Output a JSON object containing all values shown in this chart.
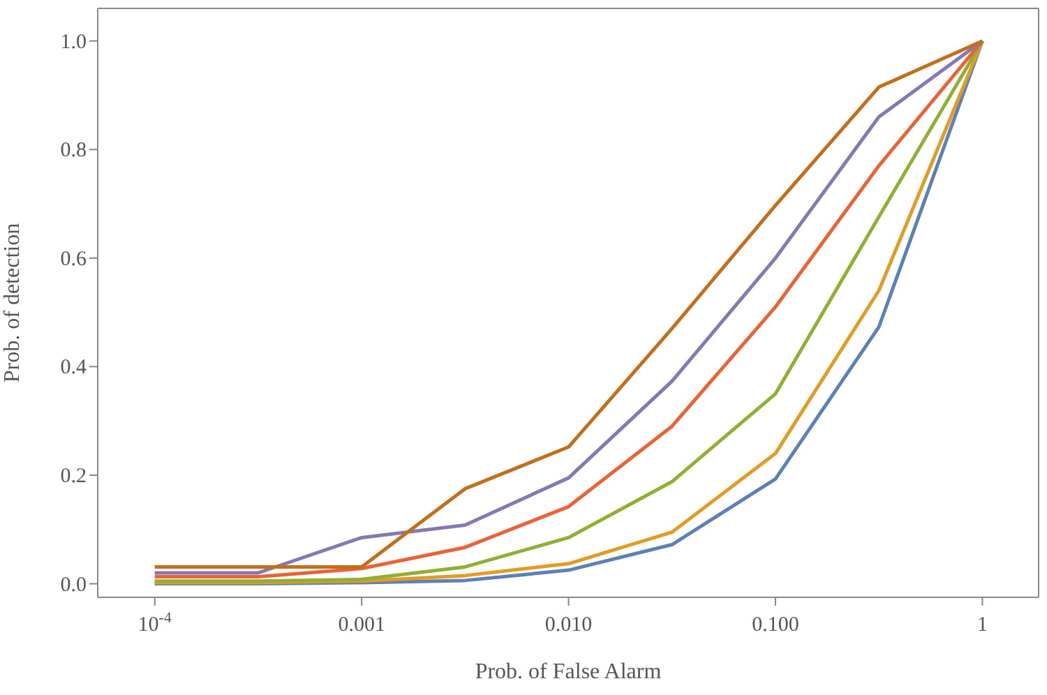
{
  "chart_data": {
    "type": "line",
    "xlabel": "Prob. of False Alarm",
    "ylabel": "Prob. of detection",
    "log": "x",
    "x": [
      0.0001,
      0.000316,
      0.001,
      0.00316,
      0.01,
      0.0316,
      0.1,
      0.316,
      1
    ],
    "series": [
      {
        "color": "#5e81b5",
        "values": [
          0,
          0,
          0.002,
          0.006,
          0.025,
          0.072,
          0.193,
          0.473,
          1
        ]
      },
      {
        "color": "#e19c24",
        "values": [
          0.002,
          0.002,
          0.005,
          0.015,
          0.037,
          0.095,
          0.24,
          0.54,
          1
        ]
      },
      {
        "color": "#8fb032",
        "values": [
          0.005,
          0.005,
          0.008,
          0.031,
          0.085,
          0.188,
          0.35,
          0.676,
          1
        ]
      },
      {
        "color": "#eb6235",
        "values": [
          0.013,
          0.013,
          0.028,
          0.067,
          0.142,
          0.29,
          0.51,
          0.77,
          1
        ]
      },
      {
        "color": "#8778b3",
        "values": [
          0.02,
          0.02,
          0.085,
          0.108,
          0.195,
          0.373,
          0.6,
          0.86,
          1
        ]
      },
      {
        "color": "#c56e1a",
        "values": [
          0.031,
          0.031,
          0.031,
          0.175,
          0.252,
          0.47,
          0.697,
          0.915,
          1
        ]
      }
    ],
    "xlim": [
      5.3e-05,
      1.87
    ],
    "ylim": [
      -0.025,
      1.06
    ],
    "xticks": [
      {
        "value": 0.0001,
        "label": "10$^{-4}$"
      },
      0.001,
      {
        "value": 0.01,
        "label": "0.010"
      },
      {
        "value": 0.1,
        "label": "0.100"
      },
      1
    ],
    "yticks": [
      {
        "value": 0,
        "label": "0.0"
      },
      {
        "value": 0.2,
        "label": "0.2"
      },
      {
        "value": 0.4,
        "label": "0.4"
      },
      {
        "value": 0.6,
        "label": "0.6"
      },
      {
        "value": 0.8,
        "label": "0.8"
      },
      {
        "value": 1,
        "label": "1.0"
      }
    ],
    "grid": false,
    "legend": false,
    "marker": "none",
    "line_style": "solid"
  }
}
